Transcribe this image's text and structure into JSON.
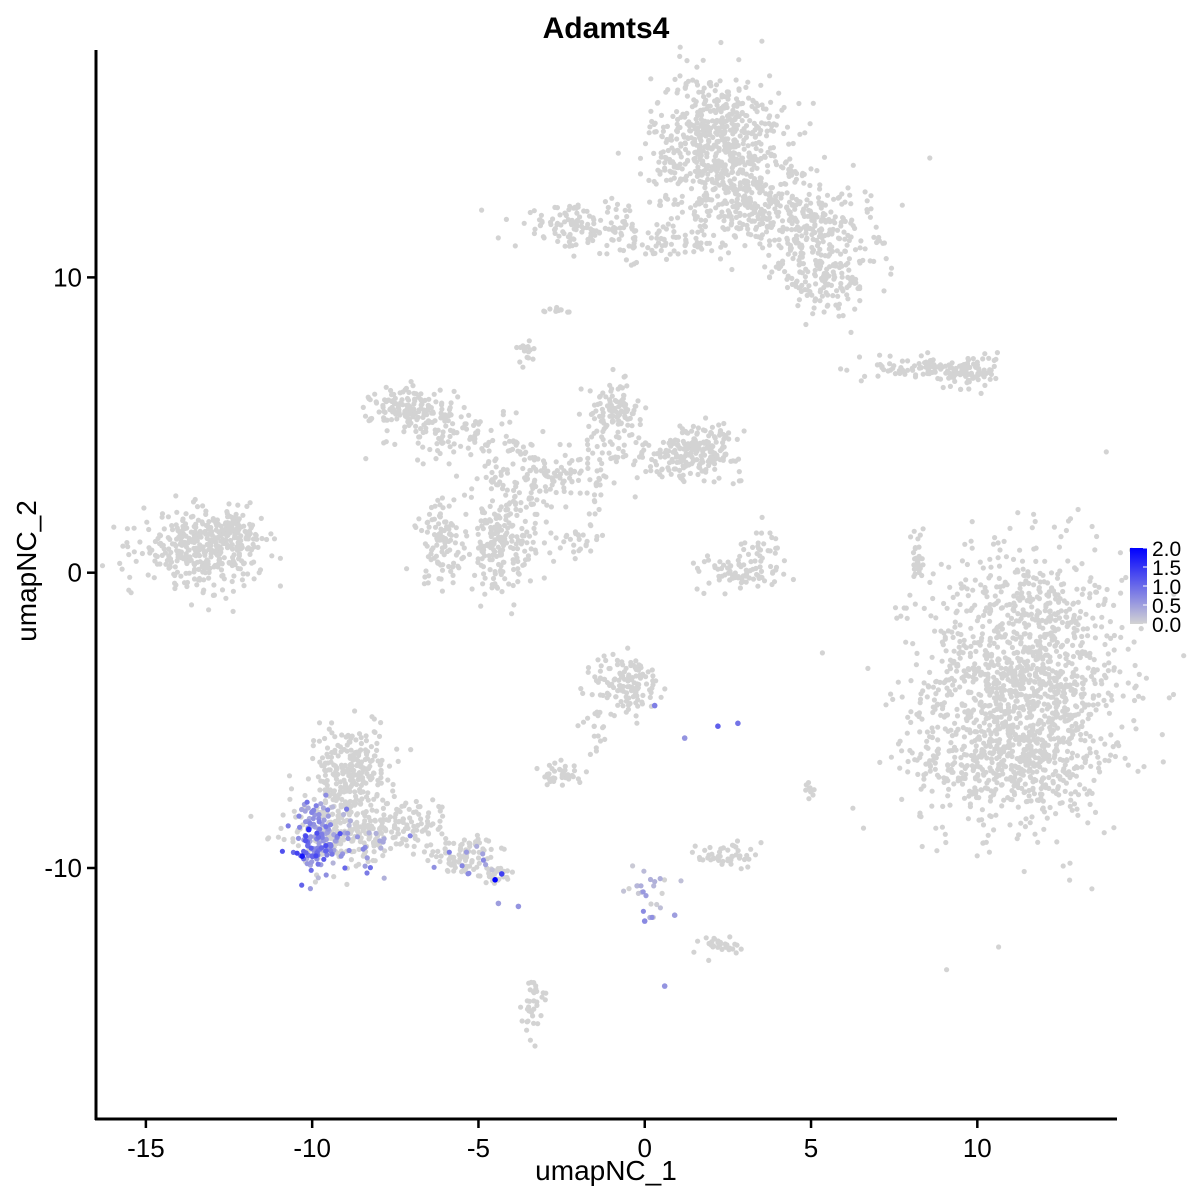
{
  "chart_data": {
    "type": "scatter",
    "title": "Adamts4",
    "xlabel": "umapNC_1",
    "ylabel": "umapNC_2",
    "xlim": [
      -16.5,
      14.2
    ],
    "ylim": [
      -18.5,
      17.7
    ],
    "x_ticks": [
      -15,
      -10,
      -5,
      0,
      5,
      10
    ],
    "y_ticks": [
      -10,
      0,
      10
    ],
    "x_tick_labels": [
      "-15",
      "-10",
      "-5",
      "0",
      "5",
      "10"
    ],
    "y_tick_labels": [
      "-10",
      "0",
      "10"
    ],
    "grid": false,
    "legend_position": "right",
    "color_scale": {
      "low_color": "#d3d3d3",
      "high_color": "#0000ff",
      "min": 0.0,
      "max": 2.0,
      "ticks": [
        2.0,
        1.5,
        1.0,
        0.5,
        0.0
      ],
      "tick_labels": [
        "2.0",
        "1.5",
        "1.0",
        "0.5",
        "0.0"
      ]
    },
    "clusters": [
      {
        "cx": 11.4,
        "cy": -3.8,
        "sx": 1.5,
        "sy": 2.3,
        "n": 1400,
        "expr": 0
      },
      {
        "cx": 10.7,
        "cy": -6.5,
        "sx": 1.5,
        "sy": 0.8,
        "n": 250,
        "expr": 0
      },
      {
        "cx": 2.2,
        "cy": 14.5,
        "sx": 1.0,
        "sy": 1.2,
        "n": 650,
        "expr": 0
      },
      {
        "cx": 3.5,
        "cy": 12.3,
        "sx": 1.4,
        "sy": 0.8,
        "n": 250,
        "expr": 0
      },
      {
        "cx": 5.0,
        "cy": 11.6,
        "sx": 0.9,
        "sy": 0.6,
        "n": 150,
        "expr": 0
      },
      {
        "cx": 5.5,
        "cy": 10.0,
        "sx": 0.8,
        "sy": 0.6,
        "n": 150,
        "expr": 0
      },
      {
        "cx": -1.9,
        "cy": 11.7,
        "sx": 1.0,
        "sy": 0.35,
        "n": 130,
        "expr": 0
      },
      {
        "cx": 0.5,
        "cy": 11.1,
        "sx": 0.8,
        "sy": 0.3,
        "n": 60,
        "expr": 0
      },
      {
        "cx": -13.3,
        "cy": 0.8,
        "sx": 0.9,
        "sy": 0.6,
        "n": 380,
        "expr": 0
      },
      {
        "cx": -12.4,
        "cy": 1.6,
        "sx": 0.5,
        "sy": 0.4,
        "n": 60,
        "expr": 0
      },
      {
        "cx": -7.0,
        "cy": 5.5,
        "sx": 0.6,
        "sy": 0.4,
        "n": 160,
        "expr": 0
      },
      {
        "cx": -5.5,
        "cy": 4.6,
        "sx": 0.8,
        "sy": 0.5,
        "n": 90,
        "expr": 0
      },
      {
        "cx": -6.1,
        "cy": 1.0,
        "sx": 0.4,
        "sy": 0.7,
        "n": 100,
        "expr": 0
      },
      {
        "cx": -4.3,
        "cy": 0.9,
        "sx": 0.5,
        "sy": 0.8,
        "n": 190,
        "expr": 0
      },
      {
        "cx": -3.6,
        "cy": 3.1,
        "sx": 0.7,
        "sy": 0.7,
        "n": 110,
        "expr": 0
      },
      {
        "cx": -1.8,
        "cy": 3.5,
        "sx": 0.8,
        "sy": 0.6,
        "n": 80,
        "expr": 0
      },
      {
        "cx": -0.9,
        "cy": 5.5,
        "sx": 0.4,
        "sy": 0.45,
        "n": 110,
        "expr": 0
      },
      {
        "cx": 1.7,
        "cy": 4.2,
        "sx": 0.6,
        "sy": 0.4,
        "n": 170,
        "expr": 0
      },
      {
        "cx": 0.7,
        "cy": 3.8,
        "sx": 0.6,
        "sy": 0.4,
        "n": 60,
        "expr": 0
      },
      {
        "cx": -3.6,
        "cy": 7.5,
        "sx": 0.15,
        "sy": 0.2,
        "n": 18,
        "expr": 0
      },
      {
        "cx": -2.7,
        "cy": 8.9,
        "sx": 0.2,
        "sy": 0.1,
        "n": 12,
        "expr": 0
      },
      {
        "cx": -2.1,
        "cy": 1.0,
        "sx": 0.6,
        "sy": 0.3,
        "n": 30,
        "expr": 0
      },
      {
        "cx": 3.0,
        "cy": 0.0,
        "sx": 0.7,
        "sy": 0.3,
        "n": 80,
        "expr": 0
      },
      {
        "cx": 3.3,
        "cy": 0.9,
        "sx": 0.3,
        "sy": 0.4,
        "n": 25,
        "expr": 0
      },
      {
        "cx": 8.7,
        "cy": 6.9,
        "sx": 0.9,
        "sy": 0.2,
        "n": 110,
        "expr": 0
      },
      {
        "cx": 9.8,
        "cy": 6.8,
        "sx": 0.4,
        "sy": 0.3,
        "n": 60,
        "expr": 0
      },
      {
        "cx": 8.2,
        "cy": 0.5,
        "sx": 0.1,
        "sy": 0.6,
        "n": 25,
        "expr": 0
      },
      {
        "cx": -0.5,
        "cy": -3.8,
        "sx": 0.5,
        "sy": 0.55,
        "n": 130,
        "expr": 0
      },
      {
        "cx": -2.5,
        "cy": -6.8,
        "sx": 0.3,
        "sy": 0.2,
        "n": 40,
        "expr": 0
      },
      {
        "cx": -1.4,
        "cy": -5.2,
        "sx": 0.25,
        "sy": 0.5,
        "n": 20,
        "expr": 0
      },
      {
        "cx": 2.4,
        "cy": -9.6,
        "sx": 0.4,
        "sy": 0.25,
        "n": 45,
        "expr": 0
      },
      {
        "cx": 2.2,
        "cy": -12.6,
        "sx": 0.4,
        "sy": 0.15,
        "n": 30,
        "expr": 0
      },
      {
        "cx": -3.4,
        "cy": -14.6,
        "sx": 0.15,
        "sy": 0.5,
        "n": 35,
        "expr": 0
      },
      {
        "cx": 0.2,
        "cy": -10.8,
        "sx": 0.3,
        "sy": 0.5,
        "n": 25,
        "expr": 0.2
      },
      {
        "cx": 5.0,
        "cy": -7.4,
        "sx": 0.1,
        "sy": 0.15,
        "n": 10,
        "expr": 0
      },
      {
        "cx": -8.8,
        "cy": -6.8,
        "sx": 0.6,
        "sy": 0.8,
        "n": 240,
        "expr": 0
      },
      {
        "cx": -9.1,
        "cy": -8.8,
        "sx": 0.8,
        "sy": 0.6,
        "n": 220,
        "expr": 0
      },
      {
        "cx": -7.2,
        "cy": -8.6,
        "sx": 0.6,
        "sy": 0.5,
        "n": 100,
        "expr": 0
      },
      {
        "cx": -5.5,
        "cy": -9.6,
        "sx": 0.5,
        "sy": 0.3,
        "n": 80,
        "expr": 0
      },
      {
        "cx": -4.4,
        "cy": -10.2,
        "sx": 0.25,
        "sy": 0.15,
        "n": 30,
        "expr": 0
      },
      {
        "cx": -9.8,
        "cy": -8.9,
        "sx": 0.35,
        "sy": 0.65,
        "n": 90,
        "expr": 0.6
      },
      {
        "cx": -10.0,
        "cy": -9.3,
        "sx": 0.3,
        "sy": 0.4,
        "n": 40,
        "expr": 1.0
      },
      {
        "cx": -8.6,
        "cy": -9.0,
        "sx": 0.6,
        "sy": 0.6,
        "n": 30,
        "expr": 0.5
      },
      {
        "cx": -5.2,
        "cy": -9.8,
        "sx": 0.5,
        "sy": 0.3,
        "n": 10,
        "expr": 0.6
      }
    ],
    "highlights": [
      {
        "x": -4.5,
        "y": -10.4,
        "value": 2.0
      },
      {
        "x": -4.3,
        "y": -10.2,
        "value": 1.4
      },
      {
        "x": -10.3,
        "y": -9.6,
        "value": 1.8
      },
      {
        "x": -10.1,
        "y": -8.7,
        "value": 1.6
      },
      {
        "x": 2.2,
        "y": -5.2,
        "value": 1.1
      },
      {
        "x": 2.8,
        "y": -5.1,
        "value": 0.9
      },
      {
        "x": 0.3,
        "y": -4.5,
        "value": 0.8
      },
      {
        "x": 1.2,
        "y": -5.6,
        "value": 0.6
      },
      {
        "x": 0.6,
        "y": -14.0,
        "value": 0.6
      },
      {
        "x": 0.0,
        "y": -11.8,
        "value": 0.7
      },
      {
        "x": 0.9,
        "y": -11.6,
        "value": 0.5
      },
      {
        "x": -3.8,
        "y": -11.3,
        "value": 0.6
      },
      {
        "x": -4.4,
        "y": -11.2,
        "value": 0.5
      }
    ]
  }
}
